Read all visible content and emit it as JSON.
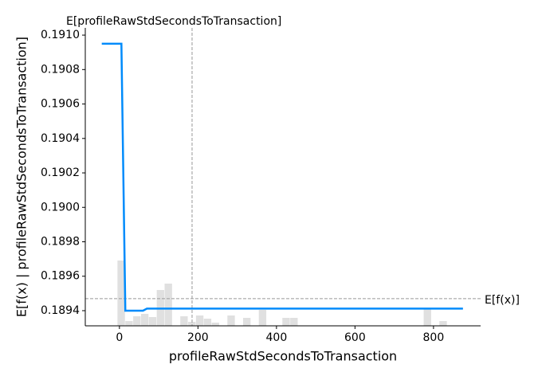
{
  "chart_data": {
    "type": "line",
    "xlabel": "profileRawStdSecondsToTransaction",
    "ylabel": "E[f(x) | profileRawStdSecondsToTransaction]",
    "x": [
      -45,
      5,
      15,
      60,
      70,
      875
    ],
    "series": [
      {
        "color": "#008bfb",
        "values": [
          0.19095,
          0.19095,
          0.1894,
          0.1894,
          0.189412,
          0.189412
        ]
      }
    ],
    "xlim": [
      -87,
      920
    ],
    "ylim": [
      0.189312,
      0.191042
    ],
    "xticks": [
      0,
      200,
      400,
      600,
      800
    ],
    "yticks": [
      0.1894,
      0.1896,
      0.1898,
      {
        "value": 0.19,
        "label": "0.1900"
      },
      0.1902,
      0.1904,
      0.1906,
      0.1908,
      {
        "value": 0.191,
        "label": "0.1910"
      }
    ],
    "histogram": {
      "color": "#cccccc",
      "bins": [
        -5,
        15,
        35,
        55,
        75,
        95,
        115,
        135,
        155,
        175,
        195,
        215,
        235,
        255,
        275,
        295,
        315,
        335,
        355,
        375,
        395,
        415,
        435,
        455,
        475,
        495,
        515,
        535,
        555,
        575,
        595,
        615,
        635,
        655,
        675,
        695,
        715,
        735,
        755,
        775,
        795,
        815,
        835
      ],
      "counts": [
        82,
        6,
        12,
        15,
        11,
        45,
        53,
        0,
        12,
        5,
        13,
        9,
        4,
        0,
        13,
        0,
        10,
        0,
        20,
        0,
        0,
        10,
        10,
        0,
        0,
        0,
        0,
        0,
        0,
        0,
        0,
        0,
        0,
        0,
        0,
        0,
        0,
        0,
        0,
        22,
        0,
        6
      ],
      "ylim": [
        0,
        374
      ]
    },
    "x_mean": {
      "value": 185,
      "label": "E[profileRawStdSecondsToTransaction]"
    },
    "y_mean": {
      "value": 0.18947,
      "label": "E[f(x)]"
    }
  }
}
